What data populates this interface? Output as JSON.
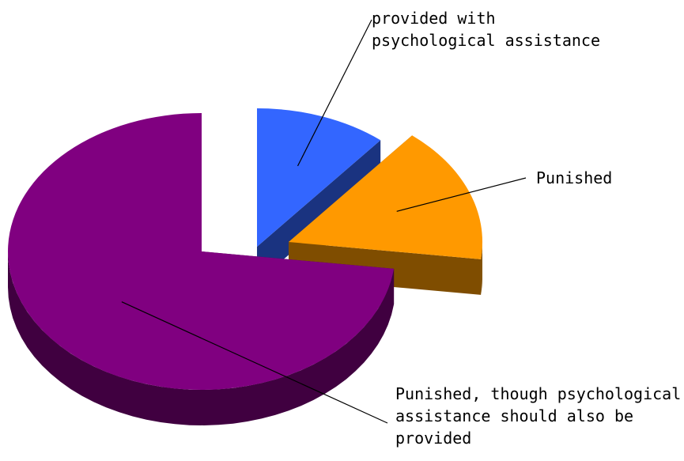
{
  "chart_data": {
    "type": "pie",
    "style": "3d-exploded",
    "title": "",
    "legend": "none",
    "series": [
      {
        "name": "provided with psychological assistance",
        "value": 11,
        "label_lines": [
          "provided with",
          "psychological assistance"
        ],
        "color": "#3366FF",
        "side_color": "#1A3380",
        "exploded": true
      },
      {
        "name": "Punished",
        "value": 16,
        "label_lines": [
          "Punished"
        ],
        "color": "#FF9900",
        "side_color": "#7F4D00",
        "exploded": true
      },
      {
        "name": "Punished, though psychological assistance should also be provided",
        "value": 73,
        "label_lines": [
          "Punished, though psychological",
          "assistance should also be",
          "provided"
        ],
        "color": "#800080",
        "side_color": "#400040",
        "exploded": false
      }
    ]
  }
}
